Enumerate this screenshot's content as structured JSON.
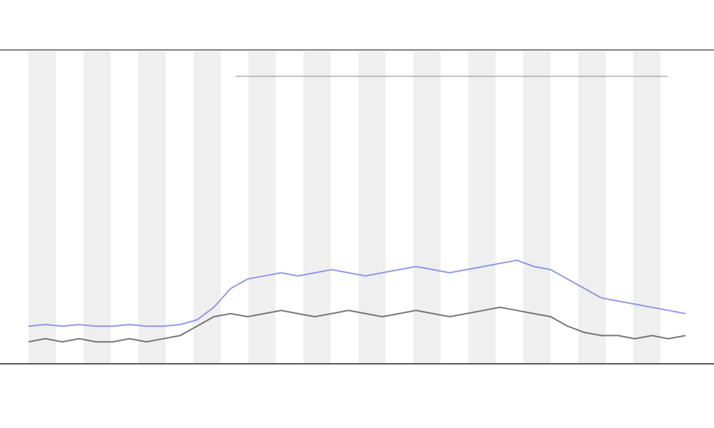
{
  "chart_data": {
    "type": "line",
    "x": [
      0,
      1,
      2,
      3,
      4,
      5,
      6,
      7,
      8,
      9,
      10,
      11,
      12,
      13,
      14,
      15,
      16,
      17,
      18,
      19,
      20,
      21,
      22,
      23,
      24,
      25,
      26,
      27,
      28,
      29,
      30,
      31,
      32,
      33,
      34,
      35,
      36,
      37,
      38,
      39
    ],
    "xlim": [
      0,
      39
    ],
    "ylim": [
      0,
      100
    ],
    "series": [
      {
        "color": "#7b7fe0",
        "values": [
          12,
          12.5,
          12,
          12.5,
          12,
          12,
          12.5,
          12,
          12,
          12.5,
          14,
          18,
          24,
          27,
          28,
          29,
          28,
          29,
          30,
          29,
          28,
          29,
          30,
          31,
          30,
          29,
          30,
          31,
          32,
          33,
          31,
          30,
          27,
          24,
          21,
          20,
          19,
          18,
          17,
          16
        ]
      },
      {
        "color": "#555555",
        "values": [
          7,
          8,
          7,
          8,
          7,
          7,
          8,
          7,
          8,
          9,
          12,
          15,
          16,
          15,
          16,
          17,
          16,
          15,
          16,
          17,
          16,
          15,
          16,
          17,
          16,
          15,
          16,
          17,
          18,
          17,
          16,
          15,
          12,
          10,
          9,
          9,
          8,
          9,
          8,
          9
        ]
      }
    ]
  }
}
